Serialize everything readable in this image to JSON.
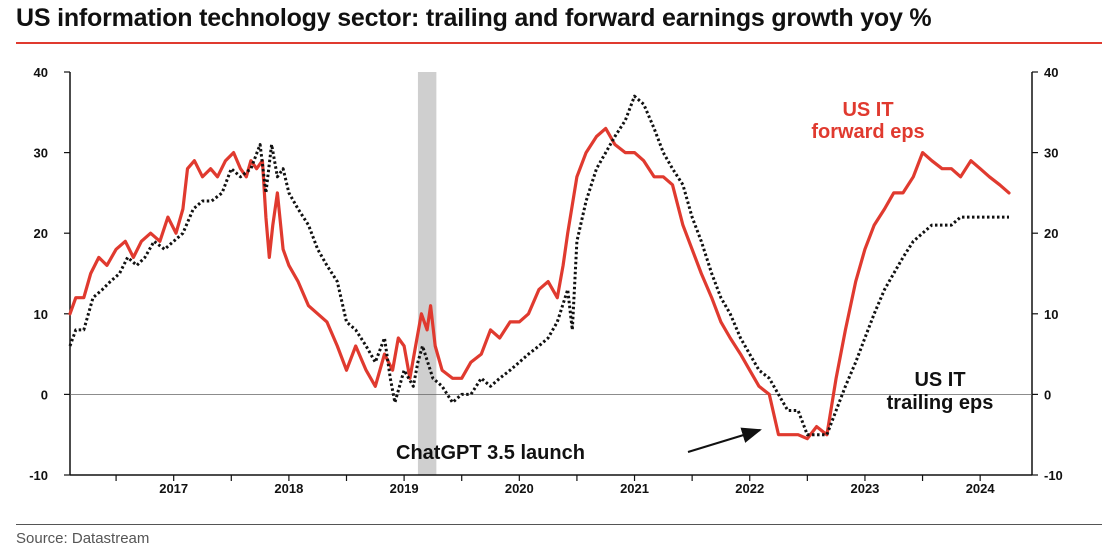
{
  "header": {
    "title": "US information technology sector: trailing and forward earnings growth yoy %"
  },
  "footer": {
    "source": "Source: Datastream"
  },
  "chart_data": {
    "type": "line",
    "title": "US information technology sector: trailing and forward earnings growth yoy %",
    "xlabel": "",
    "ylabel": "",
    "xlim": [
      2016.6,
      2024.95
    ],
    "ylim": [
      -10,
      40
    ],
    "yticks": [
      -10,
      0,
      10,
      20,
      30,
      40
    ],
    "x_tick_labels": [
      "2017",
      "2018",
      "2019",
      "2020",
      "2021",
      "2022",
      "2023",
      "2024"
    ],
    "x_tick_positions": [
      2017.0,
      2018.0,
      2019.0,
      2020.0,
      2021.0,
      2022.0,
      2023.0,
      2024.0
    ],
    "grid": false,
    "zero_line": true,
    "shaded_region": {
      "x_start": 2019.62,
      "x_end": 2019.78,
      "color": "#cfcfcf"
    },
    "series": [
      {
        "name": "US IT forward eps",
        "color": "#e03a2f",
        "style": "solid",
        "x": [
          2016.6,
          2016.65,
          2016.72,
          2016.78,
          2016.85,
          2016.92,
          2017.0,
          2017.08,
          2017.15,
          2017.22,
          2017.3,
          2017.38,
          2017.45,
          2017.52,
          2017.58,
          2017.62,
          2017.68,
          2017.75,
          2017.82,
          2017.88,
          2017.95,
          2018.02,
          2018.08,
          2018.13,
          2018.17,
          2018.22,
          2018.27,
          2018.3,
          2018.33,
          2018.36,
          2018.4,
          2018.45,
          2018.5,
          2018.58,
          2018.67,
          2018.75,
          2018.83,
          2018.92,
          2019.0,
          2019.08,
          2019.17,
          2019.25,
          2019.33,
          2019.4,
          2019.45,
          2019.5,
          2019.55,
          2019.6,
          2019.65,
          2019.7,
          2019.73,
          2019.77,
          2019.83,
          2019.92,
          2020.0,
          2020.08,
          2020.17,
          2020.25,
          2020.33,
          2020.42,
          2020.5,
          2020.58,
          2020.67,
          2020.75,
          2020.83,
          2020.88,
          2020.92,
          2021.0,
          2021.08,
          2021.17,
          2021.25,
          2021.33,
          2021.42,
          2021.5,
          2021.58,
          2021.67,
          2021.75,
          2021.83,
          2021.92,
          2022.0,
          2022.08,
          2022.17,
          2022.25,
          2022.33,
          2022.42,
          2022.5,
          2022.58,
          2022.67,
          2022.75,
          2022.83,
          2022.92,
          2023.0,
          2023.08,
          2023.17,
          2023.25,
          2023.33,
          2023.42,
          2023.5,
          2023.58,
          2023.67,
          2023.75,
          2023.83,
          2023.92,
          2024.0,
          2024.08,
          2024.17,
          2024.25,
          2024.33,
          2024.42,
          2024.5,
          2024.58,
          2024.67,
          2024.75
        ],
        "y": [
          10,
          12,
          12,
          15,
          17,
          16,
          18,
          19,
          17,
          19,
          20,
          19,
          22,
          20,
          23,
          28,
          29,
          27,
          28,
          27,
          29,
          30,
          28,
          27,
          29,
          28,
          29,
          22,
          17,
          21,
          25,
          18,
          16,
          14,
          11,
          10,
          9,
          6,
          3,
          6,
          3,
          1,
          5,
          3,
          7,
          6,
          2,
          6,
          10,
          8,
          11,
          6,
          3,
          2,
          2,
          4,
          5,
          8,
          7,
          9,
          9,
          10,
          13,
          14,
          12,
          16,
          20,
          27,
          30,
          32,
          33,
          31,
          30,
          30,
          29,
          27,
          27,
          26,
          21,
          18,
          15,
          12,
          9,
          7,
          5,
          3,
          1,
          0,
          -5,
          -5,
          -5,
          -5.5,
          -4,
          -5,
          2,
          8,
          14,
          18,
          21,
          23,
          25,
          25,
          27,
          30,
          29,
          28,
          28,
          27,
          29,
          28,
          27,
          26,
          25
        ]
      },
      {
        "name": "US IT trailing eps",
        "color": "#111111",
        "style": "dotted",
        "x": [
          2016.6,
          2016.65,
          2016.72,
          2016.8,
          2016.88,
          2016.95,
          2017.03,
          2017.1,
          2017.18,
          2017.25,
          2017.33,
          2017.42,
          2017.5,
          2017.58,
          2017.67,
          2017.75,
          2017.83,
          2017.92,
          2018.0,
          2018.08,
          2018.17,
          2018.25,
          2018.3,
          2018.35,
          2018.4,
          2018.45,
          2018.5,
          2018.58,
          2018.67,
          2018.75,
          2018.83,
          2018.92,
          2019.0,
          2019.08,
          2019.17,
          2019.25,
          2019.33,
          2019.38,
          2019.42,
          2019.5,
          2019.58,
          2019.62,
          2019.66,
          2019.75,
          2019.83,
          2019.92,
          2020.0,
          2020.08,
          2020.17,
          2020.25,
          2020.33,
          2020.42,
          2020.5,
          2020.58,
          2020.67,
          2020.75,
          2020.83,
          2020.92,
          2020.96,
          2021.0,
          2021.08,
          2021.17,
          2021.25,
          2021.33,
          2021.42,
          2021.5,
          2021.58,
          2021.67,
          2021.75,
          2021.83,
          2021.92,
          2022.0,
          2022.08,
          2022.17,
          2022.25,
          2022.33,
          2022.42,
          2022.5,
          2022.58,
          2022.67,
          2022.75,
          2022.83,
          2022.92,
          2023.0,
          2023.08,
          2023.17,
          2023.25,
          2023.33,
          2023.42,
          2023.5,
          2023.58,
          2023.67,
          2023.75,
          2023.83,
          2023.92,
          2024.0,
          2024.08,
          2024.17,
          2024.25,
          2024.33,
          2024.42,
          2024.5,
          2024.58,
          2024.67,
          2024.75
        ],
        "y": [
          6,
          8,
          8,
          12,
          13,
          14,
          15,
          17,
          16,
          17,
          19,
          18,
          19,
          20,
          23,
          24,
          24,
          25,
          28,
          27,
          28,
          31,
          25,
          31,
          27,
          28,
          25,
          23,
          21,
          18,
          16,
          14,
          9,
          8,
          6,
          4,
          7,
          2,
          -1,
          3,
          1,
          4,
          6,
          2,
          1,
          -1,
          0,
          0,
          2,
          1,
          2,
          3,
          4,
          5,
          6,
          7,
          9,
          13,
          8,
          19,
          24,
          28,
          30,
          32,
          34,
          37,
          36,
          33,
          30,
          28,
          26,
          22,
          19,
          15,
          12,
          10,
          7,
          5,
          3,
          2,
          0,
          -2,
          -2,
          -5,
          -5,
          -5,
          -2,
          1,
          4,
          7,
          10,
          13,
          15,
          17,
          19,
          20,
          21,
          21,
          21,
          22,
          22,
          22,
          22,
          22,
          22
        ]
      }
    ],
    "annotations": [
      {
        "text": "US IT",
        "color": "#e03a2f"
      },
      {
        "text": "forward eps",
        "color": "#e03a2f"
      },
      {
        "text": "US IT",
        "color": "#111111"
      },
      {
        "text": "trailing eps",
        "color": "#111111"
      },
      {
        "text": "ChatGPT 3.5 launch",
        "color": "#111111"
      }
    ]
  }
}
